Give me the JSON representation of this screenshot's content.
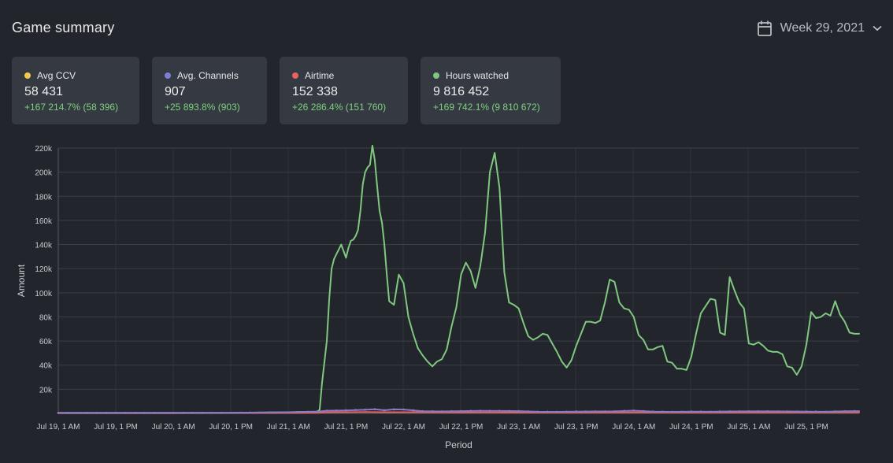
{
  "header": {
    "title": "Game summary",
    "week_label": "Week 29, 2021",
    "calendar_icon": "calendar-icon",
    "chevron_icon": "chevron-down-icon"
  },
  "cards": [
    {
      "label": "Avg CCV",
      "value": "58 431",
      "delta": "+167 214.7% (58 396)",
      "color": "#f2c94c"
    },
    {
      "label": "Avg. Channels",
      "value": "907",
      "delta": "+25 893.8% (903)",
      "color": "#7b7fd4"
    },
    {
      "label": "Airtime",
      "value": "152 338",
      "delta": "+26 286.4% (151 760)",
      "color": "#e8625e"
    },
    {
      "label": "Hours watched",
      "value": "9 816 452",
      "delta": "+169 742.1% (9 810 672)",
      "color": "#80c77f"
    }
  ],
  "chart_data": {
    "type": "line",
    "xlabel": "Period",
    "ylabel": "Amount",
    "ylim": [
      0,
      220000
    ],
    "yticks": [
      20000,
      40000,
      60000,
      80000,
      100000,
      120000,
      140000,
      160000,
      180000,
      200000,
      220000
    ],
    "ytick_labels": [
      "20k",
      "40k",
      "60k",
      "80k",
      "100k",
      "120k",
      "140k",
      "160k",
      "180k",
      "200k",
      "220k"
    ],
    "xlim_hours": [
      0,
      167
    ],
    "xtick_labels": [
      "Jul 19, 1 AM",
      "Jul 19, 1 PM",
      "Jul 20, 1 AM",
      "Jul 20, 1 PM",
      "Jul 21, 1 AM",
      "Jul 21, 1 PM",
      "Jul 22, 1 AM",
      "Jul 22, 1 PM",
      "Jul 23, 1 AM",
      "Jul 23, 1 PM",
      "Jul 24, 1 AM",
      "Jul 24, 1 PM",
      "Jul 25, 1 AM",
      "Jul 25, 1 PM"
    ],
    "grid": true,
    "series": [
      {
        "color": "#80c77f",
        "x": [
          0,
          12,
          24,
          36,
          44,
          48,
          54,
          54.5,
          55,
          56,
          56.5,
          57,
          57.5,
          58,
          58.5,
          59,
          60,
          60.5,
          61,
          61.5,
          62,
          62.5,
          63,
          63.5,
          64,
          64.5,
          65,
          65.5,
          66,
          66.5,
          67,
          67.5,
          68,
          68.5,
          69,
          70,
          71,
          72,
          73,
          74,
          75,
          76,
          77,
          78,
          79,
          80,
          81,
          82,
          83,
          84,
          85,
          86,
          87,
          88,
          89,
          90,
          91,
          92,
          93,
          94,
          95,
          96,
          97,
          98,
          99,
          100,
          101,
          102,
          103,
          104,
          105,
          106,
          107,
          108,
          109,
          110,
          111,
          112,
          113,
          114,
          115,
          116,
          117,
          118,
          119,
          120,
          121,
          122,
          123,
          124,
          125,
          126,
          127,
          128,
          129,
          130,
          131,
          132,
          133,
          134,
          135,
          136,
          137,
          138,
          139,
          140,
          141,
          142,
          143,
          144,
          145,
          146,
          147,
          148,
          149,
          150,
          151,
          152,
          153,
          154,
          155,
          156,
          157,
          158,
          159,
          160,
          161,
          162,
          163,
          164,
          165,
          166,
          167
        ],
        "values": [
          500,
          500,
          500,
          500,
          800,
          1000,
          1500,
          3000,
          25000,
          60000,
          95000,
          120000,
          128000,
          132000,
          136000,
          140000,
          129000,
          137000,
          143000,
          144000,
          147000,
          152000,
          168000,
          190000,
          200000,
          204000,
          206000,
          222000,
          210000,
          188000,
          168000,
          158000,
          140000,
          115000,
          93000,
          90000,
          115000,
          108000,
          80000,
          66000,
          54000,
          48000,
          43000,
          39000,
          43000,
          45000,
          53000,
          72000,
          88000,
          115000,
          125000,
          118000,
          104000,
          122000,
          150000,
          200000,
          216000,
          187000,
          117000,
          92000,
          90000,
          87000,
          75000,
          64000,
          61000,
          63000,
          66000,
          65000,
          58000,
          51000,
          43000,
          38000,
          44000,
          56000,
          66000,
          76000,
          76000,
          75000,
          77000,
          92000,
          111000,
          109000,
          92000,
          87000,
          86000,
          80000,
          65000,
          61000,
          53000,
          53000,
          55000,
          56000,
          43000,
          42000,
          37000,
          37000,
          36000,
          47000,
          66000,
          83000,
          89000,
          95000,
          94000,
          67000,
          65000,
          113000,
          102000,
          92000,
          87000,
          58000,
          57000,
          59000,
          56000,
          52000,
          51000,
          51000,
          49000,
          39000,
          38000,
          32000,
          39000,
          57000,
          84000,
          79000,
          80000,
          83000,
          81000,
          93000,
          82000,
          76000,
          67000,
          66000,
          66000
        ]
      },
      {
        "color": "#8a78c8",
        "x": [
          0,
          12,
          24,
          36,
          48,
          54,
          56,
          60,
          64,
          66,
          68,
          70,
          72,
          76,
          80,
          84,
          88,
          92,
          96,
          100,
          104,
          108,
          112,
          116,
          120,
          124,
          128,
          132,
          136,
          140,
          144,
          148,
          152,
          156,
          160,
          164,
          167
        ],
        "values": [
          400,
          400,
          400,
          500,
          900,
          1500,
          2200,
          2500,
          3000,
          3400,
          2600,
          3300,
          3200,
          1800,
          1600,
          1900,
          2100,
          2000,
          1900,
          1400,
          1300,
          1500,
          1600,
          1700,
          2300,
          1500,
          1300,
          1500,
          1400,
          1600,
          1700,
          1700,
          1600,
          1500,
          1400,
          1800,
          1900
        ]
      },
      {
        "color": "#e8625e",
        "x": [
          0,
          24,
          48,
          54,
          56,
          60,
          64,
          68,
          72,
          80,
          90,
          100,
          110,
          120,
          130,
          140,
          150,
          160,
          167
        ],
        "values": [
          200,
          200,
          300,
          600,
          900,
          1000,
          1100,
          1000,
          1000,
          800,
          800,
          700,
          700,
          800,
          700,
          700,
          700,
          800,
          800
        ]
      }
    ]
  }
}
